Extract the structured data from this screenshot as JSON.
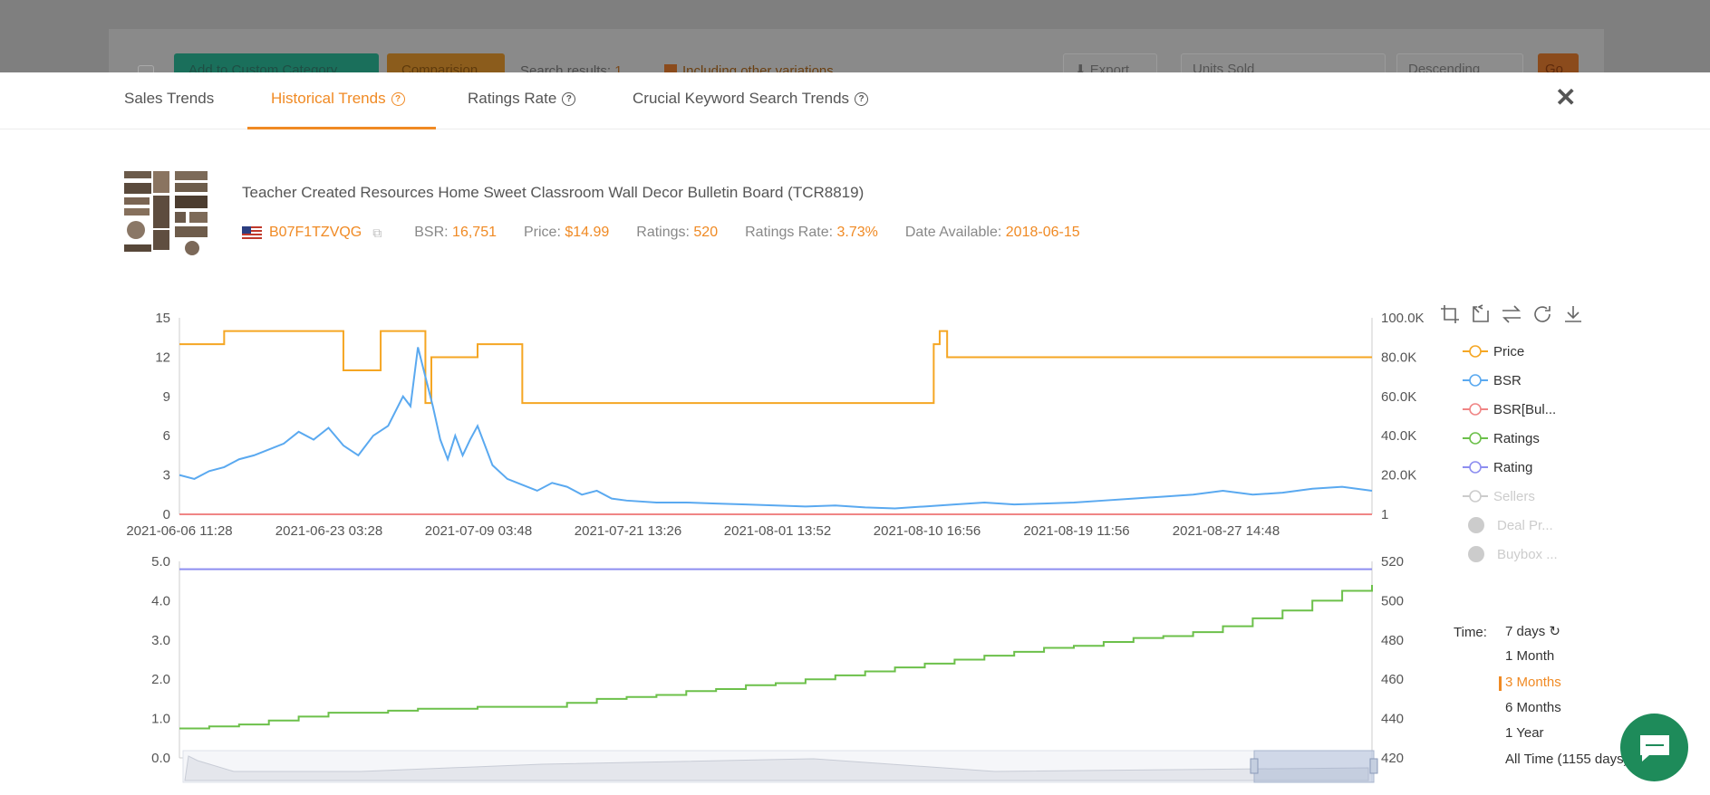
{
  "background": {
    "add_custom_category": "Add to Custom Category",
    "comparision": "Comparision",
    "search_results_label": "Search results: ",
    "search_results_count": "1",
    "including_variations": "Including other variations",
    "export": "Export",
    "sort_by": "Units Sold",
    "order": "Descending",
    "go": "Go"
  },
  "tabs": [
    {
      "label": "Sales Trends"
    },
    {
      "label": "Historical Trends"
    },
    {
      "label": "Ratings Rate"
    },
    {
      "label": "Crucial Keyword Search Trends"
    }
  ],
  "product": {
    "title": "Teacher Created Resources Home Sweet Classroom Wall Decor Bulletin Board (TCR8819)",
    "asin": "B07F1TZVQG",
    "bsr_label": "BSR: ",
    "bsr": "16,751",
    "price_label": "Price: ",
    "price": "$14.99",
    "ratings_label": "Ratings: ",
    "ratings": "520",
    "ratings_rate_label": "Ratings Rate: ",
    "ratings_rate": "3.73%",
    "date_available_label": "Date Available: ",
    "date_available": "2018-06-15"
  },
  "legend": [
    {
      "label": "Price",
      "color": "#f5a623",
      "on": true
    },
    {
      "label": "BSR",
      "color": "#5aa9f0",
      "on": true
    },
    {
      "label": "BSR[Bul...",
      "color": "#f08585",
      "on": true
    },
    {
      "label": "Ratings",
      "color": "#6cc04a",
      "on": true
    },
    {
      "label": "Rating",
      "color": "#8d8ef0",
      "on": true
    },
    {
      "label": "Sellers",
      "color": "#cccccc",
      "on": false
    },
    {
      "label": "Deal Pr...",
      "color": "#cccccc",
      "on": false
    },
    {
      "label": "Buybox ...",
      "color": "#cccccc",
      "on": false
    }
  ],
  "time": {
    "label": "Time:",
    "options": [
      "7 days",
      "1 Month",
      "3 Months",
      "6 Months",
      "1 Year",
      "All Time (1155 days)"
    ],
    "active": "3 Months"
  },
  "chart_data": [
    {
      "type": "line",
      "x_ticks": [
        "2021-06-06 11:28",
        "2021-06-23 03:28",
        "2021-07-09 03:48",
        "2021-07-21 13:26",
        "2021-08-01 13:52",
        "2021-08-10 16:56",
        "2021-08-19 11:56",
        "2021-08-27 14:48"
      ],
      "y_left_ticks": [
        "0",
        "3",
        "6",
        "9",
        "12",
        "15"
      ],
      "y_left_range": [
        0,
        15
      ],
      "y_right_ticks": [
        "1",
        "20.0K",
        "40.0K",
        "60.0K",
        "80.0K",
        "100.0K"
      ],
      "y_right_range": [
        1,
        100000
      ],
      "series": [
        {
          "name": "Price",
          "axis": "left",
          "color": "#f5a623",
          "type": "step",
          "x": [
            0,
            3,
            11,
            13.5,
            16,
            16.5,
            16.9,
            17.5,
            20,
            23,
            50.6,
            51,
            51.5,
            80
          ],
          "y": [
            12.99,
            13.99,
            10.99,
            13.99,
            13.99,
            8.49,
            11.99,
            11.99,
            12.99,
            8.49,
            12.99,
            13.99,
            11.99,
            11.99
          ]
        },
        {
          "name": "BSR",
          "axis": "right",
          "color": "#5aa9f0",
          "x": [
            0,
            1,
            2,
            3,
            4,
            5,
            6,
            7,
            8,
            9,
            10,
            11,
            12,
            13,
            14,
            15,
            15.5,
            16,
            16.5,
            17,
            17.5,
            18,
            18.5,
            19,
            19.5,
            20,
            21,
            22,
            23,
            24,
            25,
            26,
            27,
            28,
            29,
            30,
            32,
            34,
            36,
            38,
            40,
            42,
            44,
            46,
            48,
            50,
            52,
            54,
            56,
            58,
            60,
            62,
            64,
            66,
            68,
            70,
            72,
            74,
            76,
            78,
            80
          ],
          "y": [
            20000,
            18000,
            22000,
            24000,
            28000,
            30000,
            33000,
            36000,
            42000,
            38000,
            44000,
            35000,
            30000,
            40000,
            45000,
            60000,
            55000,
            85000,
            70000,
            55000,
            38000,
            28000,
            40000,
            30000,
            38000,
            45000,
            25000,
            18000,
            15000,
            12000,
            16000,
            14000,
            10000,
            12000,
            8000,
            7000,
            6000,
            6000,
            5500,
            5000,
            4500,
            4000,
            4500,
            3500,
            3000,
            4000,
            5000,
            6000,
            5000,
            5500,
            6000,
            7000,
            8000,
            9000,
            10000,
            12000,
            10000,
            11000,
            13000,
            14000,
            12000
          ]
        },
        {
          "name": "BSR[Bul...",
          "axis": "right",
          "color": "#f08585",
          "x": [
            0,
            80
          ],
          "y": [
            1,
            1
          ]
        }
      ]
    },
    {
      "type": "line",
      "y_left_ticks": [
        "0.0",
        "1.0",
        "2.0",
        "3.0",
        "4.0",
        "5.0"
      ],
      "y_left_range": [
        0,
        5
      ],
      "y_right_ticks": [
        "420",
        "440",
        "460",
        "480",
        "500",
        "520"
      ],
      "y_right_range": [
        420,
        520
      ],
      "series": [
        {
          "name": "Rating",
          "axis": "left",
          "color": "#8d8ef0",
          "x": [
            0,
            80
          ],
          "y": [
            4.8,
            4.8
          ]
        },
        {
          "name": "Ratings",
          "axis": "right",
          "color": "#6cc04a",
          "type": "step",
          "x": [
            0,
            2,
            4,
            6,
            8,
            10,
            12,
            14,
            16,
            18,
            20,
            22,
            24,
            26,
            28,
            30,
            32,
            34,
            36,
            38,
            40,
            42,
            44,
            46,
            48,
            50,
            52,
            54,
            56,
            58,
            60,
            62,
            64,
            66,
            68,
            70,
            72,
            74,
            76,
            78,
            80
          ],
          "y": [
            435,
            436,
            437,
            439,
            441,
            443,
            443,
            444,
            445,
            445,
            446,
            446,
            446,
            448,
            450,
            451,
            452,
            454,
            455,
            457,
            458,
            460,
            462,
            464,
            466,
            468,
            470,
            472,
            474,
            476,
            477,
            479,
            481,
            482,
            484,
            487,
            491,
            495,
            500,
            505,
            508
          ]
        }
      ]
    }
  ]
}
